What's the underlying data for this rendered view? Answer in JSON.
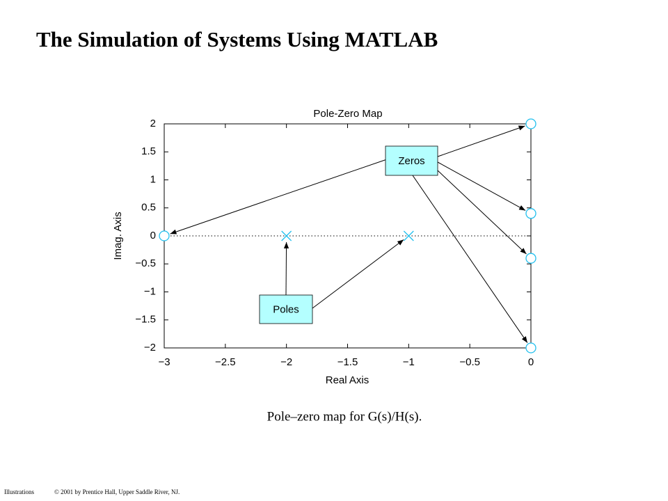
{
  "title": "The Simulation of Systems Using MATLAB",
  "caption": "Pole–zero map for G(s)/H(s).",
  "footer": {
    "label": "Illustrations",
    "copyright": "© 2001 by Prentice Hall, Upper Saddle River, NJ."
  },
  "chart_data": {
    "type": "scatter",
    "title": "Pole-Zero Map",
    "x_label": "Real Axis",
    "y_label": "Imag. Axis",
    "xlim": [
      -3,
      0
    ],
    "ylim": [
      -2,
      2
    ],
    "xticks": [
      {
        "value": -3,
        "label": "−3"
      },
      {
        "value": -2.5,
        "label": "−2.5"
      },
      {
        "value": -2,
        "label": "−2"
      },
      {
        "value": -1.5,
        "label": "−1.5"
      },
      {
        "value": -1,
        "label": "−1"
      },
      {
        "value": -0.5,
        "label": "−0.5"
      },
      0
    ],
    "yticks": [
      {
        "value": -2,
        "label": "−2"
      },
      {
        "value": -1.5,
        "label": "−1.5"
      },
      {
        "value": -1,
        "label": "−1"
      },
      {
        "value": -0.5,
        "label": "−0.5"
      },
      0,
      0.5,
      1,
      1.5,
      2
    ],
    "series": [
      {
        "name": "Poles",
        "marker": "x",
        "color": "#22c0ee",
        "x": [
          -2,
          -1
        ],
        "values": [
          0,
          0
        ]
      },
      {
        "name": "Zeros",
        "marker": "o",
        "color": "#22c0ee",
        "x": [
          -3,
          0,
          0,
          0,
          0
        ],
        "values": [
          0,
          2,
          0.4,
          -0.4,
          -2
        ]
      }
    ]
  }
}
